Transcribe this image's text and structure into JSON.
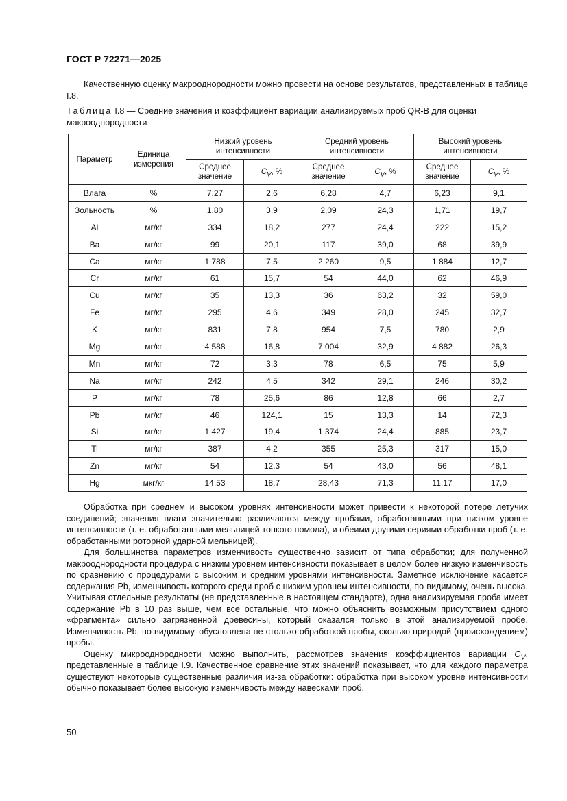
{
  "header": "ГОСТ Р 72271—2025",
  "intro": "Качественную оценку макрооднородности можно провести на основе результатов, представленных в таблице I.8.",
  "caption": {
    "label": "Таблица",
    "text": " I.8 — Средние значения и коэффициент вариации анализируемых проб QR-B для оценки макрооднородности"
  },
  "table": {
    "col_param": "Параметр",
    "col_unit": "Единица измерения",
    "groups": [
      "Низкий уровень интенсивности",
      "Средний уровень интенсивности",
      "Высокий уровень интенсивности"
    ],
    "sub_mean": "Среднее значение",
    "sub_cv_symbol": "C",
    "sub_cv_index": "V",
    "sub_cv_unit": ", %",
    "rows": [
      [
        "Влага",
        "%",
        "7,27",
        "2,6",
        "6,28",
        "4,7",
        "6,23",
        "9,1"
      ],
      [
        "Зольность",
        "%",
        "1,80",
        "3,9",
        "2,09",
        "24,3",
        "1,71",
        "19,7"
      ],
      [
        "Al",
        "мг/кг",
        "334",
        "18,2",
        "277",
        "24,4",
        "222",
        "15,2"
      ],
      [
        "Ba",
        "мг/кг",
        "99",
        "20,1",
        "117",
        "39,0",
        "68",
        "39,9"
      ],
      [
        "Ca",
        "мг/кг",
        "1 788",
        "7,5",
        "2 260",
        "9,5",
        "1 884",
        "12,7"
      ],
      [
        "Cr",
        "мг/кг",
        "61",
        "15,7",
        "54",
        "44,0",
        "62",
        "46,9"
      ],
      [
        "Cu",
        "мг/кг",
        "35",
        "13,3",
        "36",
        "63,2",
        "32",
        "59,0"
      ],
      [
        "Fe",
        "мг/кг",
        "295",
        "4,6",
        "349",
        "28,0",
        "245",
        "32,7"
      ],
      [
        "K",
        "мг/кг",
        "831",
        "7,8",
        "954",
        "7,5",
        "780",
        "2,9"
      ],
      [
        "Mg",
        "мг/кг",
        "4 588",
        "16,8",
        "7 004",
        "32,9",
        "4 882",
        "26,3"
      ],
      [
        "Mn",
        "мг/кг",
        "72",
        "3,3",
        "78",
        "6,5",
        "75",
        "5,9"
      ],
      [
        "Na",
        "мг/кг",
        "242",
        "4,5",
        "342",
        "29,1",
        "246",
        "30,2"
      ],
      [
        "P",
        "мг/кг",
        "78",
        "25,6",
        "86",
        "12,8",
        "66",
        "2,7"
      ],
      [
        "Pb",
        "мг/кг",
        "46",
        "124,1",
        "15",
        "13,3",
        "14",
        "72,3"
      ],
      [
        "Si",
        "мг/кг",
        "1 427",
        "19,4",
        "1 374",
        "24,4",
        "885",
        "23,7"
      ],
      [
        "Ti",
        "мг/кг",
        "387",
        "4,2",
        "355",
        "25,3",
        "317",
        "15,0"
      ],
      [
        "Zn",
        "мг/кг",
        "54",
        "12,3",
        "54",
        "43,0",
        "56",
        "48,1"
      ],
      [
        "Hg",
        "мкг/кг",
        "14,53",
        "18,7",
        "28,43",
        "71,3",
        "11,17",
        "17,0"
      ]
    ]
  },
  "paragraphs": [
    "Обработка при среднем и высоком уровнях интенсивности может привести к некоторой потере летучих соединений; значения влаги значительно различаются между пробами, обработанными при низком уровне интенсивности (т. е. обработанными мельницей тонкого помола), и обеими другими сериями обработки проб (т. е. обработанными роторной ударной мельницей).",
    "Для большинства параметров изменчивость существенно зависит от типа обработки; для полученной макрооднородности процедура с низким уровнем интенсивности показывает в целом более низкую изменчивость по сравнению с процедурами с высоким и средним уровнями интенсивности. Заметное исключение касается содержания Pb, изменчивость которого среди проб с низким уровнем интенсивности, по-видимому, очень высока. Учитывая отдельные результаты (не представленные в настоящем стандарте), одна анализируемая проба имеет содержание Pb в 10 раз выше, чем все остальные, что можно объяснить возможным присутствием одного «фрагмента» сильно загрязненной древесины, который оказался только в этой анализируемой пробе. Изменчивость Pb, по-видимому, обусловлена не столько обработкой пробы, сколько природой (происхождением) пробы."
  ],
  "last_paragraph": {
    "before": "Оценку микрооднородности можно выполнить, рассмотрев значения коэффициентов вариации ",
    "symbol": "C",
    "index": "V",
    "after": ", представленные в таблице I.9. Качественное сравнение этих значений показывает, что для каждого параметра существуют некоторые существенные различия из-за обработки: обработка при высоком уровне интенсивности обычно показывает более высокую изменчивость между навесками проб."
  },
  "page_number": "50"
}
